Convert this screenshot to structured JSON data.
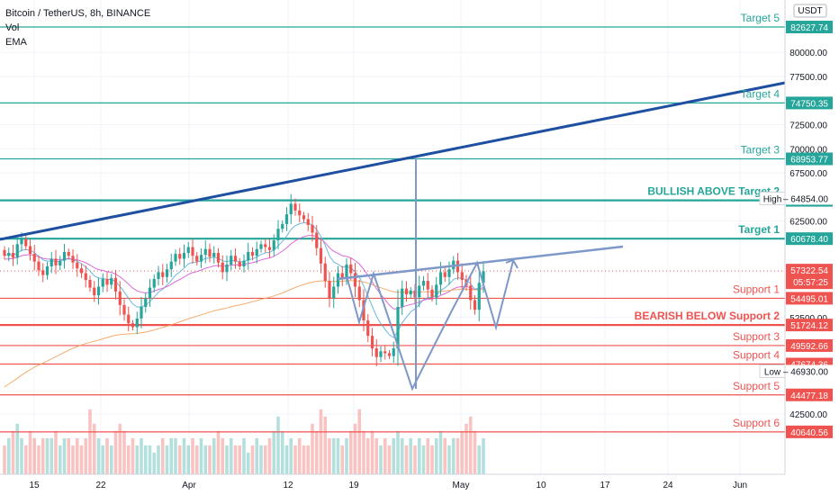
{
  "header": {
    "title": "Bitcoin / TetherUS, 8h, BINANCE",
    "indicator_1": "Vol",
    "indicator_2": "EMA"
  },
  "axis_unit": "USDT",
  "colors": {
    "target": "#26a69a",
    "support": "#ef5350",
    "trend": "#1e4fa0",
    "pattern": "#7e98c8",
    "up": "#26a69a",
    "down": "#ef5350",
    "ema_fast": "#5bb2d6",
    "ema_mid": "#d65cd6",
    "ema_slow": "#f5a25d"
  },
  "chart_data": {
    "type": "candlestick",
    "x_ticks": [
      "15",
      "22",
      "Apr",
      "12",
      "19",
      "May",
      "10",
      "17",
      "24",
      "Jun"
    ],
    "y_ticks": [
      80000,
      77500,
      72500,
      70000,
      67500,
      62500,
      52500,
      42500
    ],
    "ylim": [
      38000,
      85000
    ],
    "current_price": "57322.54",
    "countdown": "05:57:25",
    "high": {
      "label": "High",
      "value": "64854.00"
    },
    "low": {
      "label": "Low",
      "value": "46930.00"
    },
    "levels": [
      {
        "name": "Target 5",
        "value": 82627.74,
        "display": "82627.74",
        "kind": "target",
        "bold": false
      },
      {
        "name": "Target 4",
        "value": 74750.35,
        "display": "74750.35",
        "kind": "target",
        "bold": false
      },
      {
        "name": "Target 3",
        "value": 68953.77,
        "display": "68953.77",
        "kind": "target",
        "bold": false
      },
      {
        "name": "BULLISH ABOVE Target 2",
        "value": 64651.35,
        "display": "64651.35",
        "kind": "target",
        "bold": true
      },
      {
        "name": "Target 1",
        "value": 60678.4,
        "display": "60678.40",
        "kind": "target",
        "bold": true
      },
      {
        "name": "Support 1",
        "value": 54495.01,
        "display": "54495.01",
        "kind": "support",
        "bold": false
      },
      {
        "name": "BEARISH BELOW Support 2",
        "value": 51724.12,
        "display": "51724.12",
        "kind": "support",
        "bold": true
      },
      {
        "name": "Support 3",
        "value": 49592.66,
        "display": "49592.66",
        "kind": "support",
        "bold": false
      },
      {
        "name": "Support 4",
        "value": 47674.36,
        "display": "47674.36",
        "kind": "support",
        "bold": false
      },
      {
        "name": "Support 5",
        "value": 44477.18,
        "display": "44477.18",
        "kind": "support",
        "bold": false
      },
      {
        "name": "Support 6",
        "value": 40640.56,
        "display": "40640.56",
        "kind": "support",
        "bold": false
      }
    ],
    "closes": [
      58900,
      59200,
      58700,
      60100,
      60600,
      59900,
      59100,
      58300,
      57400,
      56900,
      57800,
      58600,
      57900,
      58400,
      59300,
      58900,
      58200,
      57600,
      57100,
      56400,
      55600,
      54800,
      55700,
      56500,
      55900,
      56600,
      55200,
      53800,
      52800,
      51900,
      51500,
      52400,
      53600,
      54500,
      55600,
      56500,
      57200,
      56700,
      57500,
      58300,
      59100,
      58600,
      59200,
      59800,
      58900,
      58300,
      59000,
      59600,
      58800,
      59200,
      58200,
      57200,
      58000,
      58900,
      58300,
      57800,
      58400,
      59300,
      58900,
      59600,
      60100,
      59800,
      59500,
      60500,
      61700,
      62200,
      63200,
      64300,
      63600,
      63100,
      62700,
      62100,
      61300,
      59700,
      58100,
      56300,
      54500,
      55700,
      57100,
      56500,
      58000,
      57100,
      55700,
      54300,
      52200,
      50600,
      49300,
      48400,
      49000,
      48800,
      48500,
      49300,
      53600,
      55500,
      54900,
      55300,
      54600,
      55800,
      56300,
      55400,
      54600,
      55900,
      57200,
      56700,
      57500,
      58400,
      57200,
      56400,
      55800,
      54300,
      53300,
      56100,
      57300
    ],
    "volume_rel": [
      0.4,
      0.5,
      0.6,
      0.7,
      0.5,
      0.4,
      0.6,
      0.5,
      0.4,
      0.5,
      0.5,
      0.5,
      0.6,
      0.4,
      0.5,
      0.5,
      0.4,
      0.5,
      0.4,
      0.5,
      0.9,
      0.7,
      0.5,
      0.4,
      0.5,
      0.4,
      0.6,
      0.7,
      0.6,
      0.4,
      0.5,
      0.4,
      0.5,
      0.4,
      0.4,
      0.3,
      0.4,
      0.5,
      0.4,
      0.5,
      0.5,
      0.4,
      0.5,
      0.4,
      0.5,
      0.4,
      0.5,
      0.4,
      0.4,
      0.5,
      0.6,
      0.5,
      0.4,
      0.5,
      0.4,
      0.4,
      0.5,
      0.3,
      0.4,
      0.5,
      0.4,
      0.4,
      0.5,
      0.6,
      0.8,
      0.6,
      0.4,
      0.5,
      0.4,
      0.5,
      0.4,
      0.4,
      0.7,
      0.6,
      0.9,
      0.8,
      0.5,
      0.5,
      0.5,
      0.4,
      0.5,
      0.6,
      0.7,
      0.9,
      0.6,
      0.5,
      0.6,
      0.5,
      0.4,
      0.5,
      0.4,
      0.5,
      0.6,
      0.5,
      0.4,
      0.5,
      0.4,
      0.5,
      0.4,
      0.5,
      0.4,
      0.5,
      0.6,
      0.5,
      0.4,
      0.5,
      0.5,
      0.6,
      0.7,
      0.8,
      0.6,
      0.4,
      0.5
    ]
  }
}
